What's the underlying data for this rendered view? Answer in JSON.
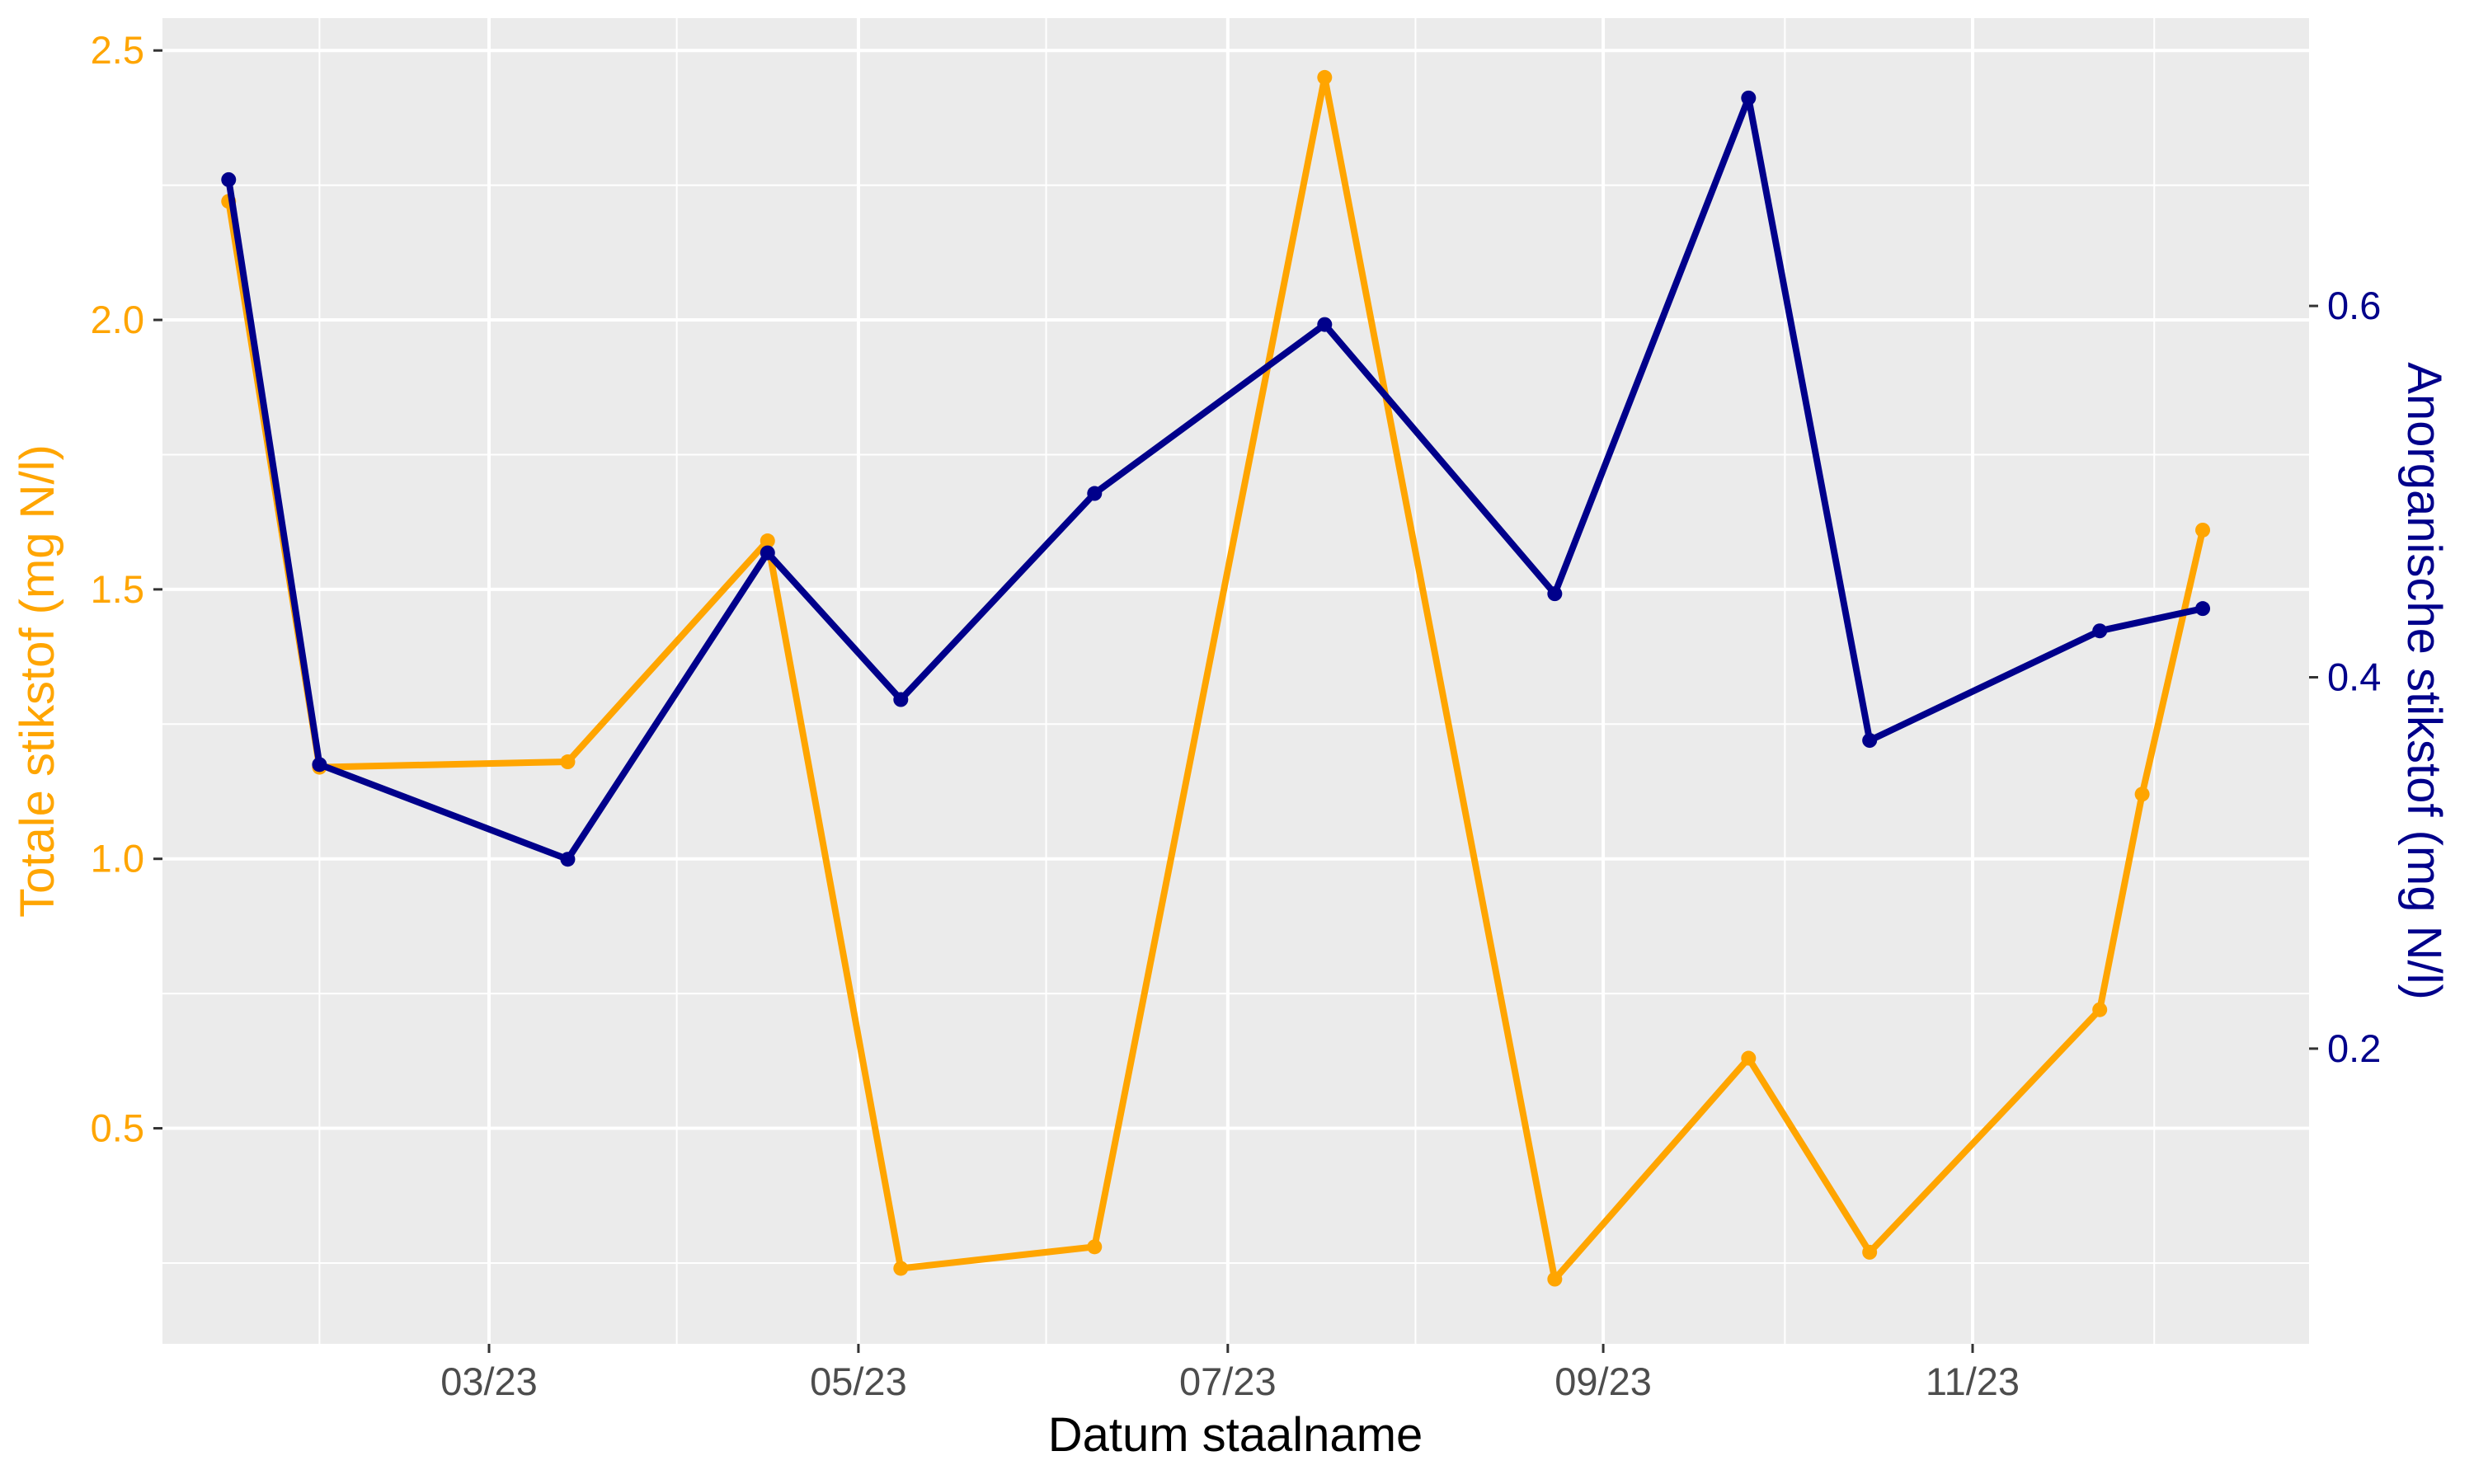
{
  "chart_data": {
    "type": "line",
    "title": "",
    "xlabel": "Datum staalname",
    "ylabel_left": "Totale stikstof (mg N/l)",
    "ylabel_right": "Anorganische stikstof (mg N/l)",
    "x_tick_labels": [
      "03/23",
      "05/23",
      "07/23",
      "09/23",
      "11/23"
    ],
    "y_left_ticks": [
      "0.5",
      "1.0",
      "1.5",
      "2.0",
      "2.5"
    ],
    "y_right_ticks": [
      "0.2",
      "0.4",
      "0.6"
    ],
    "y_left_lim": [
      0.1,
      2.56
    ],
    "y_right_lim": [
      0.041,
      0.755
    ],
    "grid": true,
    "colors": {
      "panel": "#EBEBEB",
      "grid": "#FFFFFF",
      "left_series": "#FFA500",
      "right_series": "#00008B",
      "x_text": "#4D4D4D",
      "x_title": "#000000"
    },
    "series": [
      {
        "axis": "left",
        "color": "#FFA500",
        "points": [
          {
            "x": "2023-01-17",
            "y": 2.22
          },
          {
            "x": "2023-02-01",
            "y": 1.17
          },
          {
            "x": "2023-03-14",
            "y": 1.18
          },
          {
            "x": "2023-04-16",
            "y": 1.59
          },
          {
            "x": "2023-05-08",
            "y": 0.24
          },
          {
            "x": "2023-06-09",
            "y": 0.28
          },
          {
            "x": "2023-07-17",
            "y": 2.45
          },
          {
            "x": "2023-08-24",
            "y": 0.22
          },
          {
            "x": "2023-09-25",
            "y": 0.63
          },
          {
            "x": "2023-10-15",
            "y": 0.27
          },
          {
            "x": "2023-11-22",
            "y": 0.72
          },
          {
            "x": "2023-11-29",
            "y": 1.12
          },
          {
            "x": "2023-12-09",
            "y": 1.61
          }
        ]
      },
      {
        "axis": "right",
        "color": "#00008B",
        "points": [
          {
            "x": "2023-01-17",
            "y": 0.668
          },
          {
            "x": "2023-02-01",
            "y": 0.353
          },
          {
            "x": "2023-03-14",
            "y": 0.302
          },
          {
            "x": "2023-04-16",
            "y": 0.467
          },
          {
            "x": "2023-05-08",
            "y": 0.388
          },
          {
            "x": "2023-06-09",
            "y": 0.499
          },
          {
            "x": "2023-07-17",
            "y": 0.59
          },
          {
            "x": "2023-08-24",
            "y": 0.445
          },
          {
            "x": "2023-09-25",
            "y": 0.712
          },
          {
            "x": "2023-10-15",
            "y": 0.366
          },
          {
            "x": "2023-11-22",
            "y": 0.425
          },
          {
            "x": "2023-12-09",
            "y": 0.437
          }
        ]
      }
    ]
  }
}
